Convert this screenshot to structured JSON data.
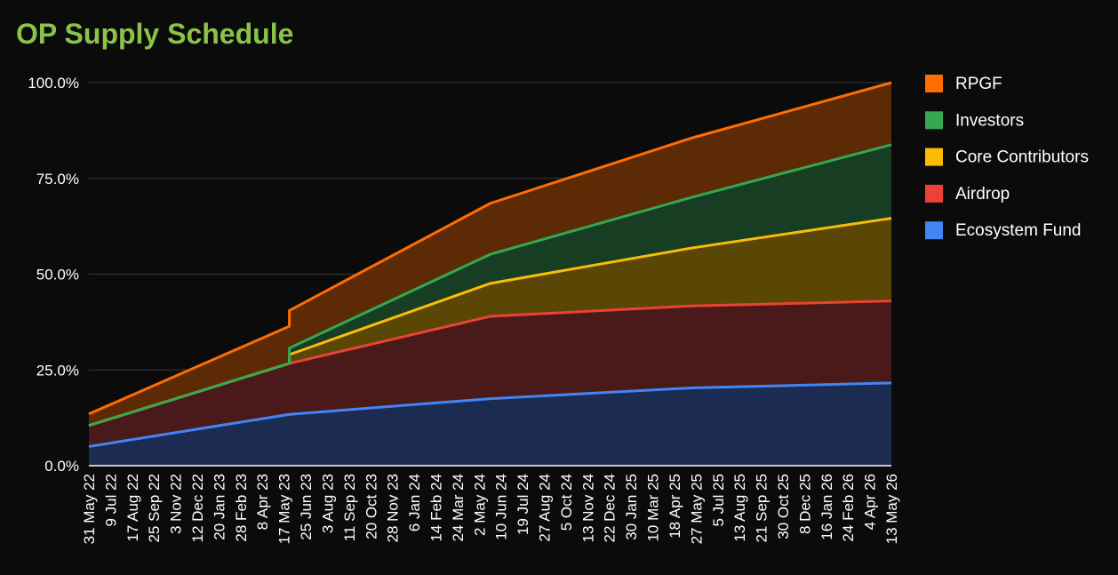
{
  "chart_data": {
    "type": "area",
    "stacked": true,
    "title": "OP Supply Schedule",
    "xlabel": "",
    "ylabel": "",
    "ylim": [
      0,
      100
    ],
    "yticks": [
      "0.0%",
      "25.0%",
      "50.0%",
      "75.0%",
      "100.0%"
    ],
    "grid": true,
    "legend_position": "right",
    "x_tick_labels": [
      "31 May 22",
      "9 Jul 22",
      "17 Aug 22",
      "25 Sep 22",
      "3 Nov 22",
      "12 Dec 22",
      "20 Jan 23",
      "28 Feb 23",
      "8 Apr 23",
      "17 May 23",
      "25 Jun 23",
      "3 Aug 23",
      "11 Sep 23",
      "20 Oct 23",
      "28 Nov 23",
      "6 Jan 24",
      "14 Feb 24",
      "24 Mar 24",
      "2 May 24",
      "10 Jun 24",
      "19 Jul 24",
      "27 Aug 24",
      "5 Oct 24",
      "13 Nov 24",
      "22 Dec 24",
      "30 Jan 25",
      "10 Mar 25",
      "18 Apr 25",
      "27 May 25",
      "5 Jul 25",
      "13 Aug 25",
      "21 Sep 25",
      "30 Oct 25",
      "8 Dec 25",
      "16 Jan 26",
      "24 Feb 26",
      "4 Apr 26",
      "13 May 26"
    ],
    "x": [
      "2022-05-31",
      "2023-05-31",
      "2023-05-31",
      "2024-05-31",
      "2025-05-31",
      "2026-05-31"
    ],
    "series": [
      {
        "name": "Ecosystem Fund",
        "color": "#4285f4",
        "fill": "#1c2b52",
        "cumulative": [
          5,
          13.4,
          13.4,
          17.5,
          20.3,
          21.6
        ]
      },
      {
        "name": "Airdrop",
        "color": "#ea4335",
        "fill": "#4a1a1a",
        "cumulative": [
          10.5,
          26.7,
          26.7,
          39,
          41.7,
          43
        ]
      },
      {
        "name": "Core Contributors",
        "color": "#fbbc04",
        "fill": "#5a4605",
        "cumulative": [
          10.5,
          26.7,
          29,
          47.6,
          56.8,
          64.6
        ]
      },
      {
        "name": "Investors",
        "color": "#34a853",
        "fill": "#173d23",
        "cumulative": [
          10.5,
          26.7,
          30.7,
          55.2,
          70,
          83.8
        ]
      },
      {
        "name": "RPGF",
        "color": "#ff6d01",
        "fill": "#5c2a05",
        "cumulative": [
          13.5,
          36.4,
          40.5,
          68.5,
          85.5,
          100
        ]
      }
    ],
    "legend": [
      "RPGF",
      "Investors",
      "Core Contributors",
      "Airdrop",
      "Ecosystem Fund"
    ],
    "colors": {
      "background": "#0b0b0b",
      "title": "#8bc34a",
      "grid": "#3a3a3a",
      "axis": "#ffffff"
    }
  }
}
